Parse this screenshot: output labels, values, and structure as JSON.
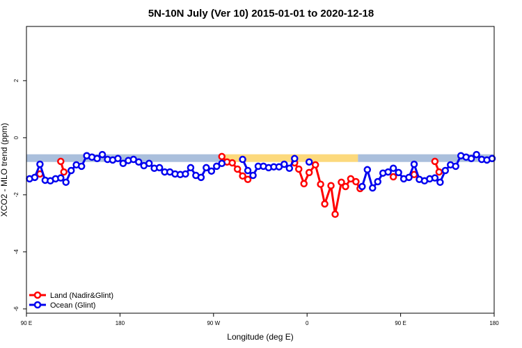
{
  "chart_data": {
    "type": "line",
    "title": "5N-10N July (Ver 10)   2015-01-01 to 2020-12-18",
    "x_label": "Longitude (deg E)",
    "y_label": "XCO2 - MLO trend (ppm)",
    "xlim": [
      90,
      540
    ],
    "xticks": [
      {
        "value": 90,
        "label": "90 E"
      },
      {
        "value": 180,
        "label": "180"
      },
      {
        "value": 270,
        "label": "90 W"
      },
      {
        "value": 360,
        "label": "0"
      },
      {
        "value": 450,
        "label": "90 E"
      },
      {
        "value": 540,
        "label": "180"
      }
    ],
    "ylim": [
      -6.15,
      3.9
    ],
    "yticks": [
      -6,
      -4,
      -2,
      0,
      2
    ],
    "legend": "bottom-left",
    "band": {
      "lower": -0.85,
      "upper": -0.58,
      "segments": [
        {
          "start": 90,
          "end": 279,
          "color": "#aabfdc"
        },
        {
          "start": 279,
          "end": 409,
          "color": "#fcd97c"
        },
        {
          "start": 409,
          "end": 540,
          "color": "#aabfdc"
        }
      ]
    },
    "series": [
      {
        "name": "Land (Nadir&Glint)",
        "color": "#ff0000",
        "x": [
          103,
          113,
          123,
          126,
          200,
          278,
          283,
          288,
          293,
          298,
          303,
          330,
          348,
          352,
          357,
          362,
          368,
          373,
          377,
          383,
          387,
          393,
          397,
          402,
          407,
          411,
          430,
          443,
          455,
          463,
          470,
          483,
          487
        ],
        "values": [
          -1.27,
          null,
          -0.83,
          -1.2,
          null,
          -0.66,
          -0.85,
          -0.88,
          -1.1,
          -1.34,
          -1.46,
          null,
          -0.88,
          -1.1,
          -1.61,
          -1.22,
          -0.95,
          -1.63,
          -2.32,
          -1.68,
          -2.68,
          -1.56,
          -1.71,
          -1.44,
          -1.54,
          -1.78,
          null,
          -1.37,
          null,
          -1.29,
          null,
          -0.83,
          -1.2
        ]
      },
      {
        "name": "Ocean (Glint)",
        "color": "#0000ee",
        "x": [
          93,
          98,
          103,
          108,
          113,
          118,
          123,
          128,
          133,
          138,
          143,
          148,
          153,
          158,
          163,
          168,
          173,
          178,
          183,
          188,
          193,
          198,
          203,
          208,
          213,
          218,
          223,
          228,
          233,
          238,
          243,
          248,
          253,
          258,
          263,
          268,
          273,
          278,
          288,
          298,
          303,
          308,
          313,
          318,
          323,
          328,
          333,
          338,
          343,
          348,
          355,
          362,
          390,
          413,
          418,
          423,
          428,
          433,
          438,
          443,
          448,
          453,
          458,
          463,
          468,
          473,
          478,
          483,
          488,
          493,
          498,
          503,
          508,
          513,
          518,
          523,
          528,
          533,
          538
        ],
        "values": [
          -1.44,
          -1.39,
          -0.93,
          -1.49,
          -1.51,
          -1.44,
          -1.41,
          -1.56,
          -1.15,
          -0.95,
          -1.0,
          -0.63,
          -0.68,
          -0.73,
          -0.59,
          -0.76,
          -0.78,
          -0.73,
          -0.9,
          -0.8,
          -0.76,
          -0.85,
          -0.98,
          -0.9,
          -1.07,
          -1.05,
          -1.2,
          -1.2,
          -1.27,
          -1.29,
          -1.27,
          -1.05,
          -1.32,
          -1.39,
          -1.05,
          -1.17,
          -1.0,
          -0.9,
          null,
          -0.76,
          -1.15,
          -1.32,
          -1.0,
          -1.0,
          -1.05,
          -1.02,
          -1.02,
          -0.93,
          -1.07,
          -0.73,
          null,
          -0.85,
          null,
          -1.71,
          -1.12,
          -1.76,
          -1.54,
          -1.24,
          -1.2,
          -1.07,
          -1.22,
          -1.44,
          -1.39,
          -0.93,
          -1.46,
          -1.51,
          -1.44,
          -1.41,
          -1.56,
          -1.15,
          -0.95,
          -1.0,
          -0.63,
          -0.68,
          -0.73,
          -0.59,
          -0.76,
          -0.78,
          -0.73
        ]
      }
    ]
  }
}
